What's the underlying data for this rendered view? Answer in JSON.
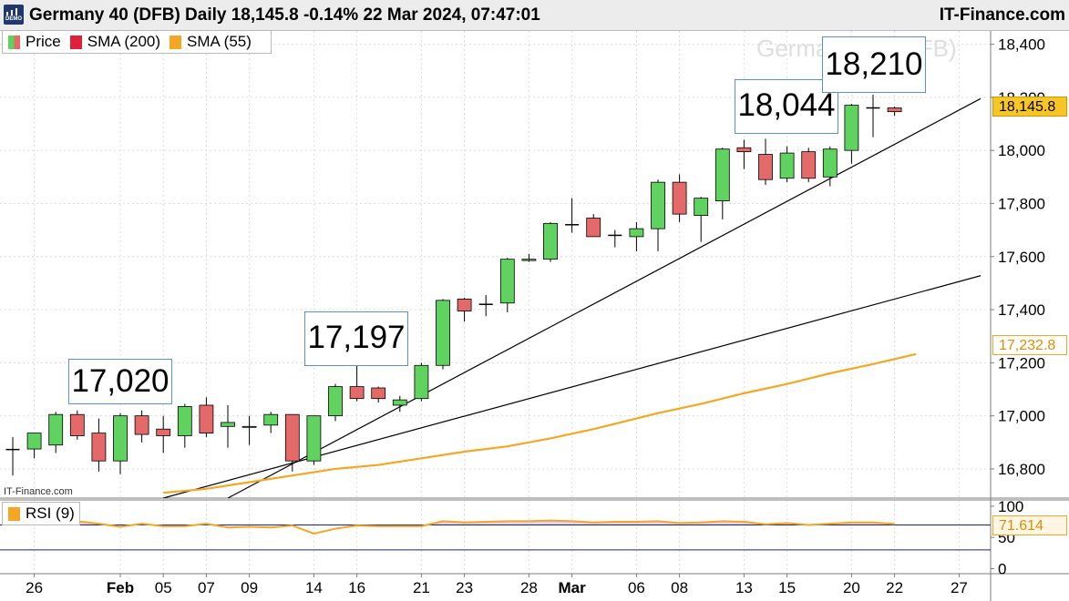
{
  "header": {
    "title": "Germany 40 (DFB) Daily 18,145.8 -0.14% 22 Mar 2024, 07:47:01",
    "brand": "IT-Finance.com",
    "icon_label": "DEMO"
  },
  "legend": {
    "price": "Price",
    "sma200": "SMA (200)",
    "sma55": "SMA (55)"
  },
  "rsi_legend": "RSI (9)",
  "watermark": "Germany 40 (DFB)",
  "source_label": "IT-Finance.com",
  "callouts": [
    "17,020",
    "17,197",
    "18,044",
    "18,210"
  ],
  "badges": {
    "last_price": "18,145.8",
    "sma55_value": "17,232.8",
    "rsi_value": "71.614"
  },
  "colors": {
    "up": "#5fd25f",
    "down": "#e46a6a",
    "sma55": "#f5a623",
    "sma200": "#e0203a",
    "rsi": "#f5a623",
    "price_badge": "#f7c625",
    "trendline": "#000000",
    "rsi_band": "#1a237e"
  },
  "chart_data": {
    "type": "candlestick",
    "title": "Germany 40 (DFB) Daily",
    "date_labels": [
      "26",
      "",
      "",
      "",
      "",
      "Feb",
      "05",
      "07",
      "09",
      "",
      "",
      "14",
      "16",
      "",
      "",
      "21",
      "23",
      "",
      "",
      "28",
      "Mar",
      "",
      "",
      "06",
      "08",
      "",
      "",
      "13",
      "15",
      "",
      "",
      "20",
      "22",
      "",
      "",
      "27"
    ],
    "tick_labels_x": [
      {
        "idx": 1,
        "label": "26"
      },
      {
        "idx": 5,
        "label": "Feb"
      },
      {
        "idx": 7,
        "label": "05"
      },
      {
        "idx": 9,
        "label": "07"
      },
      {
        "idx": 11,
        "label": "09"
      },
      {
        "idx": 14,
        "label": "14"
      },
      {
        "idx": 16,
        "label": "16"
      },
      {
        "idx": 19,
        "label": "21"
      },
      {
        "idx": 21,
        "label": "23"
      },
      {
        "idx": 24,
        "label": "28"
      },
      {
        "idx": 26,
        "label": "Mar"
      },
      {
        "idx": 29,
        "label": "06"
      },
      {
        "idx": 31,
        "label": "08"
      },
      {
        "idx": 34,
        "label": "13"
      },
      {
        "idx": 36,
        "label": "15"
      },
      {
        "idx": 39,
        "label": "20"
      },
      {
        "idx": 41,
        "label": "22"
      },
      {
        "idx": 44,
        "label": "27"
      }
    ],
    "candles": [
      {
        "o": 16873,
        "h": 16920,
        "l": 16775,
        "c": 16873
      },
      {
        "o": 16875,
        "h": 16935,
        "l": 16840,
        "c": 16935
      },
      {
        "o": 16890,
        "h": 17015,
        "l": 16860,
        "c": 17005
      },
      {
        "o": 17005,
        "h": 17020,
        "l": 16910,
        "c": 16925
      },
      {
        "o": 16935,
        "h": 16990,
        "l": 16790,
        "c": 16830
      },
      {
        "o": 16830,
        "h": 17010,
        "l": 16780,
        "c": 17000
      },
      {
        "o": 17000,
        "h": 17020,
        "l": 16900,
        "c": 16930
      },
      {
        "o": 16950,
        "h": 17000,
        "l": 16860,
        "c": 16925
      },
      {
        "o": 16925,
        "h": 17045,
        "l": 16880,
        "c": 17035
      },
      {
        "o": 17040,
        "h": 17070,
        "l": 16920,
        "c": 16935
      },
      {
        "o": 16960,
        "h": 17040,
        "l": 16880,
        "c": 16975
      },
      {
        "o": 16958,
        "h": 17000,
        "l": 16890,
        "c": 16960
      },
      {
        "o": 16965,
        "h": 17015,
        "l": 16935,
        "c": 17005
      },
      {
        "o": 17005,
        "h": 17005,
        "l": 16790,
        "c": 16830
      },
      {
        "o": 16830,
        "h": 17000,
        "l": 16815,
        "c": 17000
      },
      {
        "o": 17000,
        "h": 17120,
        "l": 16980,
        "c": 17110
      },
      {
        "o": 17110,
        "h": 17197,
        "l": 17055,
        "c": 17065
      },
      {
        "o": 17105,
        "h": 17110,
        "l": 17050,
        "c": 17065
      },
      {
        "o": 17040,
        "h": 17075,
        "l": 17015,
        "c": 17060
      },
      {
        "o": 17065,
        "h": 17200,
        "l": 17055,
        "c": 17190
      },
      {
        "o": 17190,
        "h": 17440,
        "l": 17175,
        "c": 17435
      },
      {
        "o": 17440,
        "h": 17445,
        "l": 17355,
        "c": 17395
      },
      {
        "o": 17420,
        "h": 17455,
        "l": 17375,
        "c": 17420
      },
      {
        "o": 17425,
        "h": 17595,
        "l": 17390,
        "c": 17590
      },
      {
        "o": 17585,
        "h": 17610,
        "l": 17580,
        "c": 17590
      },
      {
        "o": 17590,
        "h": 17730,
        "l": 17580,
        "c": 17725
      },
      {
        "o": 17720,
        "h": 17820,
        "l": 17690,
        "c": 17720
      },
      {
        "o": 17745,
        "h": 17760,
        "l": 17675,
        "c": 17675
      },
      {
        "o": 17680,
        "h": 17700,
        "l": 17635,
        "c": 17680
      },
      {
        "o": 17675,
        "h": 17730,
        "l": 17620,
        "c": 17705
      },
      {
        "o": 17705,
        "h": 17890,
        "l": 17620,
        "c": 17880
      },
      {
        "o": 17880,
        "h": 17910,
        "l": 17730,
        "c": 17760
      },
      {
        "o": 17755,
        "h": 17825,
        "l": 17655,
        "c": 17820
      },
      {
        "o": 17810,
        "h": 18010,
        "l": 17740,
        "c": 18005
      },
      {
        "o": 18010,
        "h": 18040,
        "l": 17930,
        "c": 17995
      },
      {
        "o": 17985,
        "h": 18044,
        "l": 17870,
        "c": 17890
      },
      {
        "o": 17895,
        "h": 18015,
        "l": 17880,
        "c": 17990
      },
      {
        "o": 17995,
        "h": 18010,
        "l": 17880,
        "c": 17895
      },
      {
        "o": 17900,
        "h": 18015,
        "l": 17865,
        "c": 18005
      },
      {
        "o": 18000,
        "h": 18175,
        "l": 17950,
        "c": 18170
      },
      {
        "o": 18160,
        "h": 18210,
        "l": 18050,
        "c": 18160
      },
      {
        "o": 18160,
        "h": 18165,
        "l": 18130,
        "c": 18145.8
      }
    ],
    "sma55": [
      [
        7,
        16710
      ],
      [
        9,
        16725
      ],
      [
        11,
        16750
      ],
      [
        13,
        16775
      ],
      [
        15,
        16800
      ],
      [
        17,
        16815
      ],
      [
        19,
        16840
      ],
      [
        21,
        16865
      ],
      [
        23,
        16885
      ],
      [
        25,
        16915
      ],
      [
        27,
        16950
      ],
      [
        28,
        16970
      ],
      [
        30,
        17010
      ],
      [
        32,
        17045
      ],
      [
        34,
        17085
      ],
      [
        36,
        17120
      ],
      [
        38,
        17160
      ],
      [
        40,
        17195
      ],
      [
        42,
        17232.8
      ]
    ],
    "trendlines": [
      {
        "x1": 7,
        "y1": 16690,
        "x2": 45,
        "y2": 17528
      },
      {
        "x1": 10,
        "y1": 16690,
        "x2": 45,
        "y2": 18195
      }
    ],
    "y_ticks": [
      16800,
      17000,
      17200,
      17400,
      17600,
      17800,
      18000,
      18200,
      18400
    ],
    "y_tick_labels": [
      "16,800",
      "17,000",
      "17,200",
      "17,400",
      "17,600",
      "17,800",
      "18,000",
      "18,200",
      "18,400"
    ],
    "ylim": [
      16690,
      18450
    ],
    "rsi": {
      "values": [
        [
          0,
          72
        ],
        [
          2,
          74
        ],
        [
          3,
          76
        ],
        [
          4,
          72
        ],
        [
          5,
          67
        ],
        [
          6,
          72
        ],
        [
          7,
          68
        ],
        [
          8,
          68
        ],
        [
          9,
          72
        ],
        [
          10,
          66
        ],
        [
          11,
          67
        ],
        [
          12,
          66
        ],
        [
          13,
          69
        ],
        [
          14,
          56
        ],
        [
          15,
          64
        ],
        [
          16,
          69
        ],
        [
          17,
          68
        ],
        [
          18,
          68
        ],
        [
          19,
          68
        ],
        [
          20,
          76
        ],
        [
          21,
          74
        ],
        [
          22,
          75
        ],
        [
          23,
          76
        ],
        [
          24,
          76
        ],
        [
          25,
          77
        ],
        [
          26,
          76
        ],
        [
          27,
          74
        ],
        [
          28,
          75
        ],
        [
          29,
          75
        ],
        [
          30,
          76
        ],
        [
          31,
          73
        ],
        [
          32,
          74
        ],
        [
          33,
          76
        ],
        [
          34,
          75
        ],
        [
          35,
          71
        ],
        [
          36,
          73
        ],
        [
          37,
          70
        ],
        [
          38,
          72
        ],
        [
          39,
          74
        ],
        [
          40,
          74
        ],
        [
          41,
          71.614
        ]
      ],
      "level": 70,
      "ylim": [
        -8,
        110
      ],
      "ticks": [
        0,
        50,
        100
      ],
      "tick_labels": [
        "0",
        "50",
        "100"
      ]
    }
  }
}
